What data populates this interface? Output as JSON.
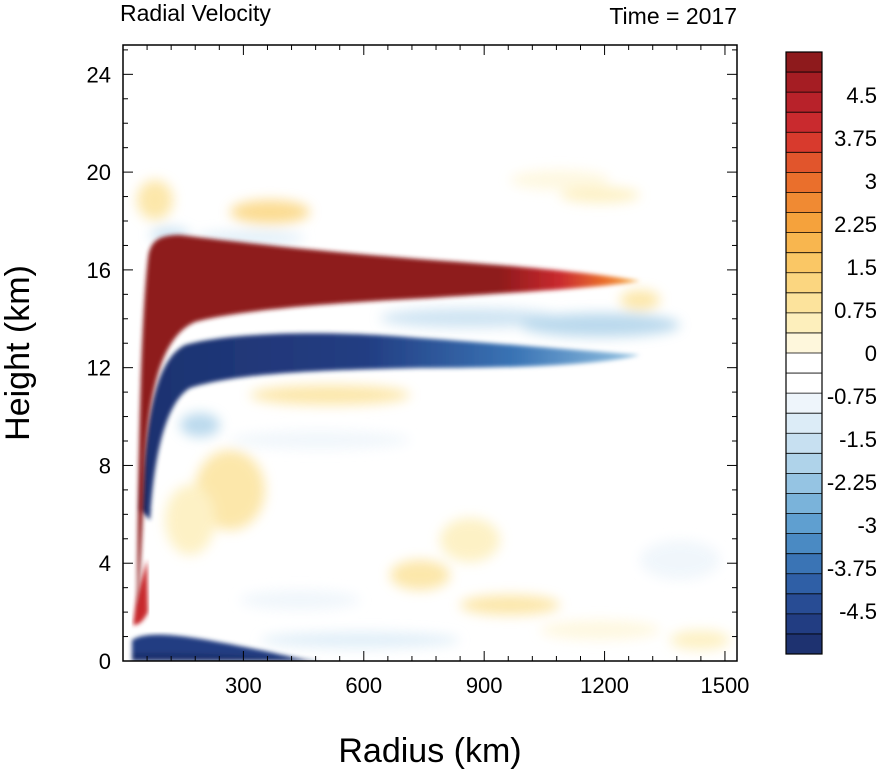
{
  "chart_data": {
    "type": "heatmap",
    "title": "Radial Velocity",
    "right_title": "Time = 2017",
    "xlabel": "Radius (km)",
    "ylabel": "Height (km)",
    "xlim": [
      0,
      1530
    ],
    "ylim": [
      0,
      25.2
    ],
    "x_ticks": [
      300,
      600,
      900,
      1200,
      1500
    ],
    "y_ticks": [
      0,
      4,
      8,
      12,
      16,
      20,
      24
    ],
    "colorbar": {
      "min": -5.25,
      "max": 5.25,
      "labels": [
        "4.5",
        "3.75",
        "3",
        "2.25",
        "1.5",
        "0.75",
        "0",
        "-0.75",
        "-1.5",
        "-2.25",
        "-3",
        "-3.75",
        "-4.5"
      ],
      "label_values": [
        4.5,
        3.75,
        3,
        2.25,
        1.5,
        0.75,
        0,
        -0.75,
        -1.5,
        -2.25,
        -3,
        -3.75,
        -4.5
      ],
      "colors_top_to_bottom": [
        "#8e1a1c",
        "#a51d23",
        "#b8222a",
        "#c92a2e",
        "#d83a2d",
        "#e1552c",
        "#ea6f2c",
        "#f08a33",
        "#f5a23c",
        "#f8b64f",
        "#fac765",
        "#fbd680",
        "#fce39c",
        "#fdefbc",
        "#fef7dc",
        "#ffffff",
        "#ffffff",
        "#eef5fb",
        "#dcecf7",
        "#c7e0f1",
        "#afd3ea",
        "#95c4e3",
        "#7ab3da",
        "#5f9fd0",
        "#4a8ac3",
        "#3a74b5",
        "#2f5fa6",
        "#284c94",
        "#223d82",
        "#1e3270"
      ]
    },
    "field_features": [
      {
        "name": "outflow-maximum",
        "r": [
          150,
          1250
        ],
        "z": [
          13.5,
          17.2
        ],
        "value": 5.25
      },
      {
        "name": "upper-inflow-minimum",
        "r": [
          120,
          900
        ],
        "z": [
          11.5,
          13.6
        ],
        "value": -5.25
      },
      {
        "name": "boundary-layer-inflow",
        "r": [
          30,
          320
        ],
        "z": [
          0,
          1.3
        ],
        "value": -5.25
      }
    ]
  }
}
